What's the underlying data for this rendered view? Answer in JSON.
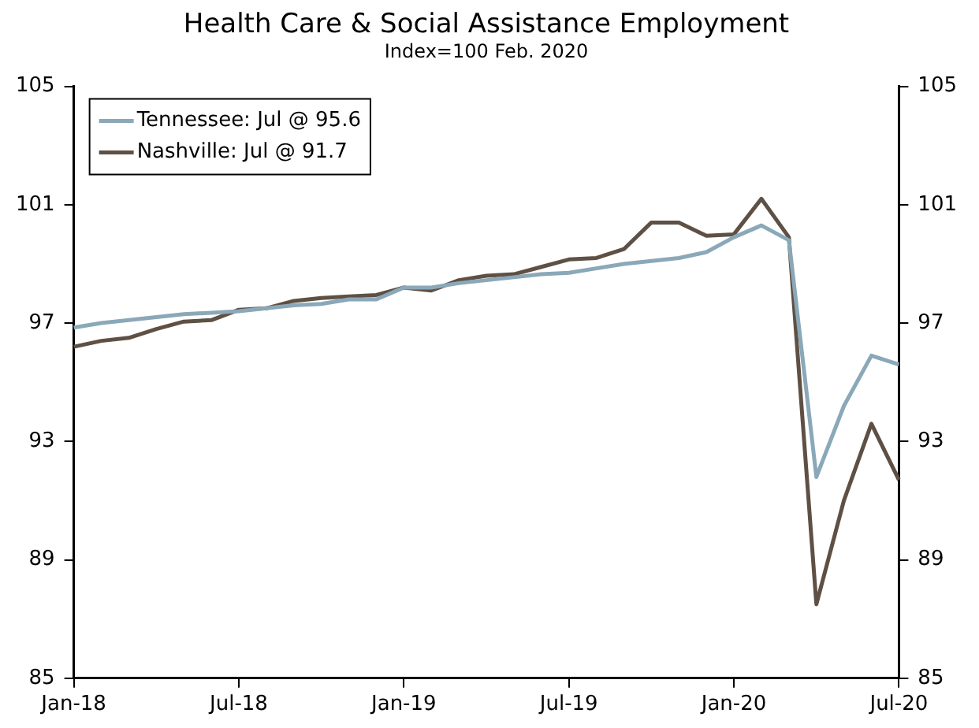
{
  "chart_data": {
    "type": "line",
    "title": "Health Care & Social Assistance Employment",
    "subtitle": "Index=100 Feb. 2020",
    "categories": [
      "Jan-18",
      null,
      null,
      null,
      null,
      null,
      "Jul-18",
      null,
      null,
      null,
      null,
      null,
      "Jan-19",
      null,
      null,
      null,
      null,
      null,
      "Jul-19",
      null,
      null,
      null,
      null,
      null,
      "Jan-20",
      null,
      null,
      null,
      null,
      null,
      "Jul-20"
    ],
    "series": [
      {
        "name": "Tennessee: Jul @ 95.6",
        "color": "#8aa8b8",
        "values": [
          96.85,
          97.0,
          97.1,
          97.2,
          97.3,
          97.35,
          97.4,
          97.5,
          97.6,
          97.65,
          97.8,
          97.8,
          98.2,
          98.2,
          98.35,
          98.45,
          98.55,
          98.65,
          98.7,
          98.85,
          99.0,
          99.1,
          99.2,
          99.4,
          99.9,
          100.3,
          99.8,
          91.8,
          94.2,
          95.9,
          95.6
        ]
      },
      {
        "name": "Nashville: Jul @ 91.7",
        "color": "#5e5045",
        "values": [
          96.2,
          96.4,
          96.5,
          96.8,
          97.05,
          97.1,
          97.45,
          97.5,
          97.75,
          97.85,
          97.9,
          97.95,
          98.2,
          98.1,
          98.45,
          98.6,
          98.65,
          98.9,
          99.15,
          99.2,
          99.5,
          100.4,
          100.4,
          99.95,
          100.0,
          101.2,
          99.9,
          87.5,
          91.0,
          93.6,
          91.7
        ]
      }
    ],
    "ylim": [
      85,
      105
    ],
    "yticks": [
      85,
      89,
      93,
      97,
      101,
      105
    ],
    "y2lim": [
      85,
      105
    ],
    "y2ticks": [
      85,
      89,
      93,
      97,
      101,
      105
    ],
    "grid": false,
    "legend": "top left",
    "marker": "none",
    "line_style": "solid"
  }
}
